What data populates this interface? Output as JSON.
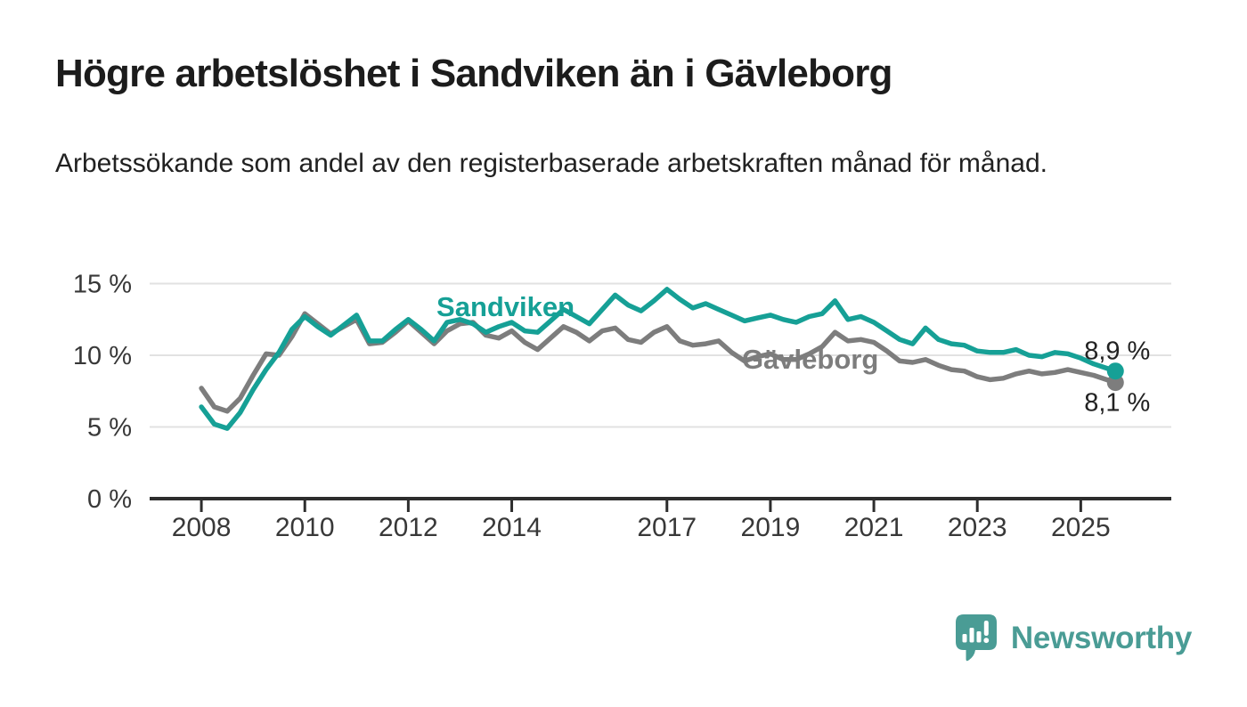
{
  "title": "Högre arbetslöshet i Sandviken än i Gävleborg",
  "subtitle": "Arbetssökande som andel av den registerbaserade arbetskraften månad för månad.",
  "branding": {
    "name": "Newsworthy",
    "logo_color": "#4a9c95"
  },
  "colors": {
    "sandviken": "#16a096",
    "gavleborg": "#7d7d7d",
    "grid": "#e2e2e2",
    "axis": "#2d2d2d",
    "tick_text": "#383838",
    "annotation_text": "#222222",
    "background": "#ffffff"
  },
  "chart_data": {
    "type": "line",
    "x_unit": "decimal_year",
    "x_domain": [
      2007.0,
      2026.75
    ],
    "y_domain": [
      0,
      15
    ],
    "grid": "horizontal",
    "x_ticks": [
      2008,
      2010,
      2012,
      2014,
      2017,
      2019,
      2021,
      2023,
      2025
    ],
    "x_tick_labels": [
      "2008",
      "2010",
      "2012",
      "2014",
      "2017",
      "2019",
      "2021",
      "2023",
      "2025"
    ],
    "y_ticks": [
      0,
      5,
      10,
      15
    ],
    "y_tick_labels": [
      "0 %",
      "5 %",
      "10 %",
      "15 %"
    ],
    "x": [
      2008.0,
      2008.25,
      2008.5,
      2008.75,
      2009.0,
      2009.25,
      2009.5,
      2009.75,
      2010.0,
      2010.25,
      2010.5,
      2010.75,
      2011.0,
      2011.25,
      2011.5,
      2011.75,
      2012.0,
      2012.25,
      2012.5,
      2012.75,
      2013.0,
      2013.25,
      2013.5,
      2013.75,
      2014.0,
      2014.25,
      2014.5,
      2014.75,
      2015.0,
      2015.25,
      2015.5,
      2015.75,
      2016.0,
      2016.25,
      2016.5,
      2016.75,
      2017.0,
      2017.25,
      2017.5,
      2017.75,
      2018.0,
      2018.25,
      2018.5,
      2018.75,
      2019.0,
      2019.25,
      2019.5,
      2019.75,
      2020.0,
      2020.25,
      2020.5,
      2020.75,
      2021.0,
      2021.25,
      2021.5,
      2021.75,
      2022.0,
      2022.25,
      2022.5,
      2022.75,
      2023.0,
      2023.25,
      2023.5,
      2023.75,
      2024.0,
      2024.25,
      2024.5,
      2024.75,
      2025.0,
      2025.25,
      2025.5,
      2025.67
    ],
    "series": [
      {
        "name": "Gävleborg",
        "color": "#7d7d7d",
        "end_label": "8,1 %",
        "label_anchor": {
          "x": 2019.77,
          "y": 9.7
        },
        "values": [
          7.7,
          6.4,
          6.1,
          7.0,
          8.6,
          10.1,
          10.0,
          11.3,
          12.9,
          12.2,
          11.5,
          12.0,
          12.5,
          10.8,
          10.9,
          11.6,
          12.4,
          11.6,
          10.8,
          11.7,
          12.2,
          12.3,
          11.4,
          11.2,
          11.7,
          10.9,
          10.4,
          11.2,
          12.0,
          11.6,
          11.0,
          11.7,
          11.9,
          11.1,
          10.9,
          11.6,
          12.0,
          11.0,
          10.7,
          10.8,
          11.0,
          10.2,
          9.6,
          9.9,
          10.1,
          9.7,
          9.7,
          10.1,
          10.6,
          11.6,
          11.0,
          11.1,
          10.9,
          10.3,
          9.6,
          9.5,
          9.7,
          9.3,
          9.0,
          8.9,
          8.5,
          8.3,
          8.4,
          8.7,
          8.9,
          8.7,
          8.8,
          9.0,
          8.8,
          8.6,
          8.3,
          8.1
        ]
      },
      {
        "name": "Sandviken",
        "color": "#16a096",
        "end_label": "8,9 %",
        "label_anchor": {
          "x": 2013.88,
          "y": 13.35
        },
        "values": [
          6.4,
          5.2,
          4.9,
          6.0,
          7.6,
          9.0,
          10.2,
          11.8,
          12.7,
          12.0,
          11.4,
          12.1,
          12.8,
          11.0,
          11.0,
          11.8,
          12.5,
          11.8,
          11.0,
          12.3,
          12.5,
          12.2,
          11.6,
          12.0,
          12.3,
          11.7,
          11.6,
          12.4,
          13.2,
          12.7,
          12.2,
          13.2,
          14.2,
          13.5,
          13.1,
          13.8,
          14.6,
          13.9,
          13.3,
          13.6,
          13.2,
          12.8,
          12.4,
          12.6,
          12.8,
          12.5,
          12.3,
          12.7,
          12.9,
          13.8,
          12.5,
          12.7,
          12.3,
          11.7,
          11.1,
          10.8,
          11.9,
          11.1,
          10.8,
          10.7,
          10.3,
          10.2,
          10.2,
          10.4,
          10.0,
          9.9,
          10.2,
          10.1,
          9.8,
          9.4,
          9.1,
          8.9
        ]
      }
    ]
  }
}
